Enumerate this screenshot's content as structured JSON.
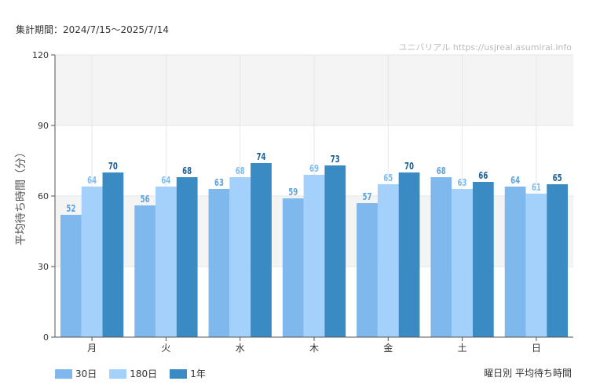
{
  "header": {
    "period": "集計期間：2024/7/15〜2025/7/14",
    "source": "ユニバリアル https://usjreal.asumirai.info"
  },
  "footer": {
    "caption": "曜日別 平均待ち時間"
  },
  "chart_data": {
    "type": "bar",
    "categories": [
      "月",
      "火",
      "水",
      "木",
      "金",
      "土",
      "日"
    ],
    "series": [
      {
        "name": "30日",
        "color": "#7eb8ec",
        "label_color": "#5ea3e0",
        "values": [
          52,
          56,
          63,
          59,
          57,
          68,
          64
        ]
      },
      {
        "name": "180日",
        "color": "#a3d1fb",
        "label_color": "#7cbef2",
        "values": [
          64,
          64,
          68,
          69,
          65,
          63,
          61
        ]
      },
      {
        "name": "1年",
        "color": "#3a8ac4",
        "label_color": "#1c5f96",
        "values": [
          70,
          68,
          74,
          73,
          70,
          66,
          65
        ]
      }
    ],
    "ylabel": "平均待ち時間（分）",
    "ylim": [
      0,
      120
    ],
    "yticks": [
      0,
      30,
      60,
      90,
      120
    ],
    "grid": true,
    "legend": "bottom-left"
  }
}
